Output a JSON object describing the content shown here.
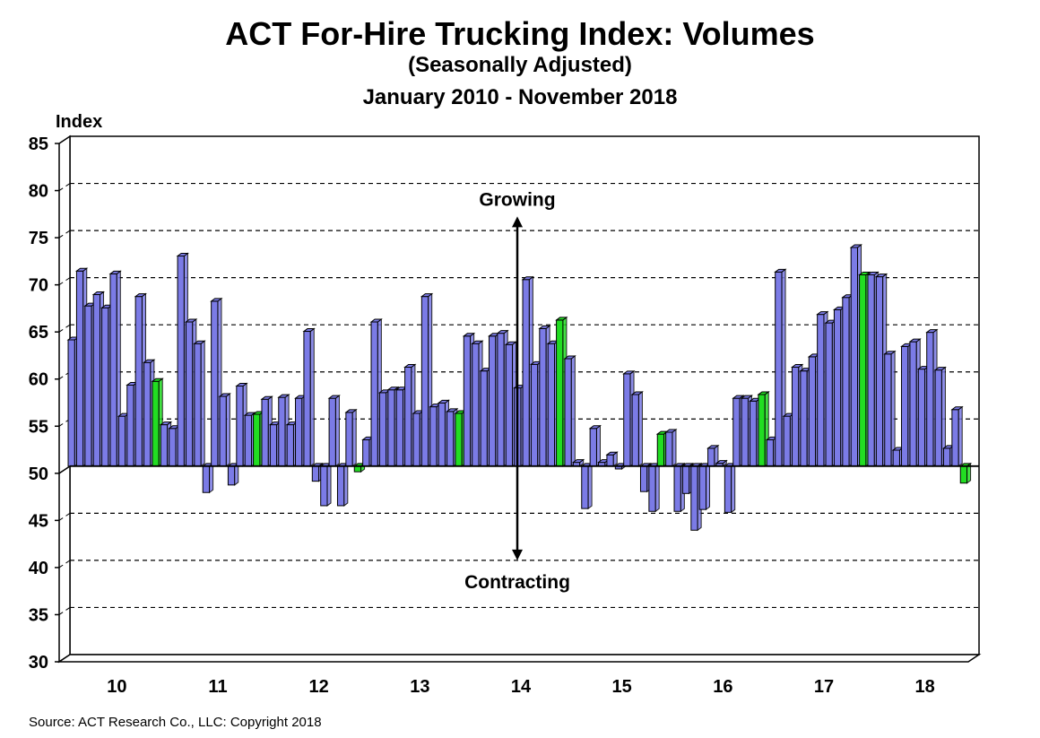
{
  "chart_data": {
    "type": "bar",
    "title": "ACT For-Hire Trucking Index: Volumes",
    "subtitle": "(Seasonally Adjusted)",
    "subtitle2": "January 2010 - November 2018",
    "ylabel": "Index",
    "ylim": [
      30,
      85
    ],
    "yticks": [
      30,
      35,
      40,
      45,
      50,
      55,
      60,
      65,
      70,
      75,
      80,
      85
    ],
    "baseline": 50,
    "grid": true,
    "year_labels": [
      "10",
      "11",
      "12",
      "13",
      "14",
      "15",
      "16",
      "17",
      "18"
    ],
    "annotations": {
      "up": "Growing",
      "down": "Contracting",
      "at_year": "14"
    },
    "source": "Source: ACT Research Co., LLC: Copyright 2018",
    "colors": {
      "bar": "#7b7be6",
      "highlight": "#22dd22",
      "edge": "#000000"
    },
    "values": [
      63.4,
      70.7,
      67.0,
      68.2,
      66.8,
      70.4,
      55.3,
      58.6,
      68.0,
      61.0,
      59.0,
      54.4,
      54.0,
      72.3,
      65.3,
      63.0,
      47.2,
      67.5,
      57.4,
      48.0,
      58.5,
      55.4,
      55.5,
      57.1,
      54.4,
      57.3,
      54.4,
      57.2,
      64.3,
      48.4,
      45.8,
      57.2,
      45.8,
      55.7,
      49.4,
      52.8,
      65.3,
      57.8,
      58.1,
      58.1,
      60.5,
      55.6,
      68.0,
      56.3,
      56.7,
      55.8,
      55.6,
      63.8,
      63.0,
      60.1,
      63.8,
      64.1,
      62.9,
      58.3,
      69.8,
      60.8,
      64.6,
      63.0,
      65.5,
      61.4,
      50.4,
      45.5,
      54.0,
      50.4,
      51.2,
      49.7,
      59.8,
      57.6,
      47.3,
      45.2,
      53.4,
      53.6,
      45.2,
      47.1,
      43.2,
      45.4,
      51.9,
      50.3,
      45.1,
      57.2,
      57.2,
      56.9,
      57.6,
      52.8,
      70.6,
      55.3,
      60.5,
      60.1,
      61.6,
      66.1,
      65.2,
      66.6,
      67.9,
      73.2,
      70.3,
      70.3,
      70.1,
      61.9,
      51.7,
      62.7,
      63.2,
      60.3,
      64.2,
      60.2,
      51.9,
      56.0,
      48.2
    ],
    "highlighted_indices": [
      10,
      22,
      34,
      46,
      58,
      70,
      82,
      94,
      106
    ]
  }
}
